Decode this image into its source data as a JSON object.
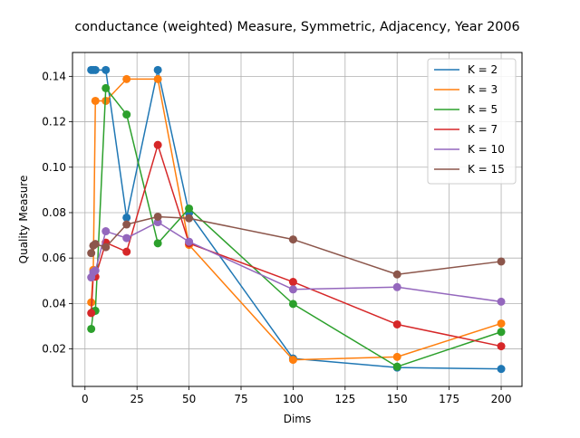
{
  "chart_data": {
    "type": "line",
    "title": "conductance (weighted) Measure, Symmetric, Adjacency, Year 2006",
    "xlabel": "Dims",
    "ylabel": "Quality Measure",
    "xlim": [
      -6,
      210
    ],
    "ylim": [
      0.0035,
      0.1505
    ],
    "xticks": [
      0,
      25,
      50,
      75,
      100,
      125,
      150,
      175,
      200
    ],
    "yticks": [
      0.02,
      0.04,
      0.06,
      0.08,
      0.1,
      0.12,
      0.14
    ],
    "ytick_labels": [
      "0.02",
      "0.04",
      "0.06",
      "0.08",
      "0.10",
      "0.12",
      "0.14"
    ],
    "grid": true,
    "legend_position": "top-right",
    "x": [
      3,
      4,
      5,
      10,
      20,
      35,
      50,
      100,
      150,
      200
    ],
    "series": [
      {
        "name": "K = 2",
        "color": "#1f77b4",
        "values": [
          0.1428,
          0.1428,
          0.1428,
          0.1428,
          0.0778,
          0.1428,
          0.0798,
          0.0158,
          0.0118,
          0.0112
        ]
      },
      {
        "name": "K = 3",
        "color": "#ff7f0e",
        "values": [
          0.0405,
          0.0548,
          0.1292,
          0.1292,
          0.1388,
          0.1388,
          0.0658,
          0.0152,
          0.0165,
          0.0312
        ]
      },
      {
        "name": "K = 5",
        "color": "#2ca02c",
        "values": [
          0.0288,
          0.0365,
          0.0368,
          0.1348,
          0.1232,
          0.0665,
          0.0818,
          0.0398,
          0.0122,
          0.0275
        ]
      },
      {
        "name": "K = 7",
        "color": "#d62728",
        "values": [
          0.0358,
          0.0525,
          0.0518,
          0.0668,
          0.0628,
          0.1098,
          0.0665,
          0.0495,
          0.0308,
          0.0212
        ]
      },
      {
        "name": "K = 10",
        "color": "#9467bd",
        "values": [
          0.0515,
          0.0538,
          0.0545,
          0.0718,
          0.0688,
          0.0758,
          0.0672,
          0.0462,
          0.0472,
          0.0408
        ]
      },
      {
        "name": "K = 15",
        "color": "#8c564b",
        "values": [
          0.0622,
          0.0655,
          0.0662,
          0.0648,
          0.0748,
          0.0782,
          0.0775,
          0.0682,
          0.0528,
          0.0585
        ]
      }
    ]
  }
}
